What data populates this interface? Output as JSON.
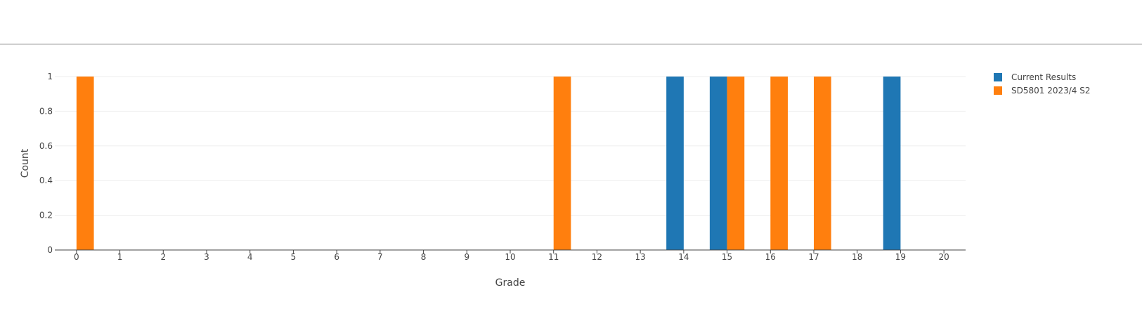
{
  "chart_data": {
    "type": "bar",
    "xlabel": "Grade",
    "ylabel": "Count",
    "x": [
      0,
      1,
      2,
      3,
      4,
      5,
      6,
      7,
      8,
      9,
      10,
      11,
      12,
      13,
      14,
      15,
      16,
      17,
      18,
      19,
      20
    ],
    "xlim": [
      -0.5,
      20.5
    ],
    "ylim": [
      0,
      1
    ],
    "yticks": [
      0,
      0.2,
      0.4,
      0.6,
      0.8,
      1
    ],
    "grid": true,
    "legend_position": "top-right",
    "series": [
      {
        "name": "Current Results",
        "color": "#1f77b4",
        "values": [
          0,
          0,
          0,
          0,
          0,
          0,
          0,
          0,
          0,
          0,
          0,
          0,
          0,
          0,
          1,
          1,
          0,
          0,
          0,
          1,
          0
        ]
      },
      {
        "name": "SD5801 2023/4 S2",
        "color": "#ff7f0e",
        "values": [
          1,
          0,
          0,
          0,
          0,
          0,
          0,
          0,
          0,
          0,
          0,
          1,
          0,
          0,
          0,
          1,
          1,
          1,
          0,
          0,
          0
        ]
      }
    ]
  }
}
